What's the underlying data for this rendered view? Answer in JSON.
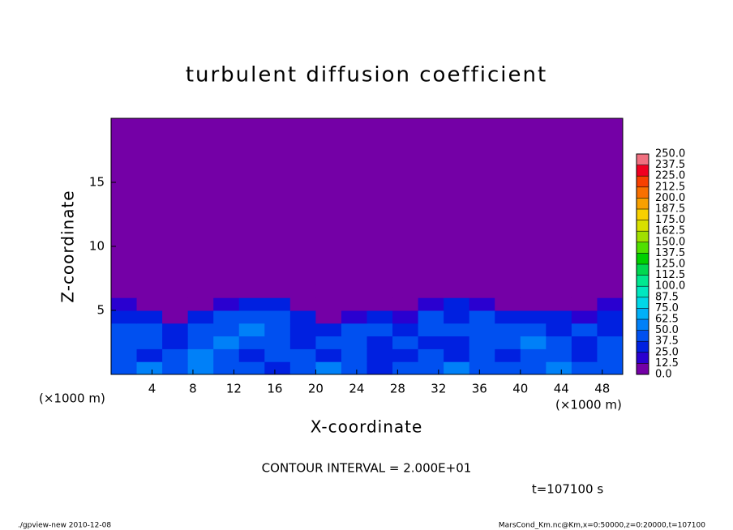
{
  "chart_data": {
    "type": "heatmap",
    "title": "turbulent diffusion coefficient",
    "x_label": "X-coordinate",
    "y_label": "Z-coordinate",
    "x_unit": "(×1000 m)",
    "y_unit": "(×1000 m)",
    "annotation": "CONTOUR INTERVAL = 2.000E+01",
    "time_label": "t=107100 s",
    "footer_left": "./gpview-new  2010-12-08",
    "footer_right": "MarsCond_Km.nc@Km,x=0:50000,z=0:20000,t=107100",
    "xlim": [
      0,
      50
    ],
    "ylim": [
      0,
      20
    ],
    "xticks": [
      4,
      8,
      12,
      16,
      20,
      24,
      28,
      32,
      36,
      40,
      44,
      48
    ],
    "yticks": [
      5,
      10,
      15
    ],
    "x_edges": [
      0,
      2.5,
      5,
      7.5,
      10,
      12.5,
      15,
      17.5,
      20,
      22.5,
      25,
      27.5,
      30,
      32.5,
      35,
      37.5,
      40,
      42.5,
      45,
      47.5,
      50
    ],
    "y_edges": [
      0,
      1,
      2,
      3,
      4,
      5,
      6,
      7,
      20
    ],
    "values": [
      [
        45,
        50,
        40,
        55,
        45,
        40,
        35,
        45,
        50,
        40,
        35,
        40,
        45,
        50,
        45,
        40,
        45,
        50,
        40,
        45
      ],
      [
        40,
        35,
        45,
        50,
        40,
        35,
        40,
        45,
        35,
        40,
        30,
        35,
        40,
        35,
        45,
        35,
        40,
        45,
        35,
        40
      ],
      [
        45,
        40,
        35,
        45,
        50,
        40,
        45,
        35,
        40,
        45,
        35,
        40,
        35,
        30,
        45,
        40,
        50,
        40,
        35,
        40
      ],
      [
        40,
        45,
        30,
        40,
        45,
        50,
        40,
        35,
        30,
        40,
        45,
        35,
        45,
        40,
        45,
        40,
        45,
        35,
        40,
        35
      ],
      [
        35,
        25,
        10,
        30,
        40,
        45,
        40,
        30,
        10,
        15,
        30,
        20,
        40,
        35,
        40,
        30,
        35,
        25,
        15,
        30
      ],
      [
        20,
        5,
        0,
        5,
        20,
        30,
        25,
        10,
        0,
        0,
        5,
        0,
        20,
        25,
        20,
        10,
        10,
        5,
        0,
        15
      ],
      [
        0,
        0,
        0,
        0,
        0,
        5,
        0,
        0,
        0,
        0,
        0,
        0,
        0,
        0,
        0,
        0,
        0,
        0,
        0,
        0
      ],
      [
        0,
        0,
        0,
        0,
        0,
        0,
        0,
        0,
        0,
        0,
        0,
        0,
        0,
        0,
        0,
        0,
        0,
        0,
        0,
        0
      ]
    ],
    "levels": [
      {
        "value": 0,
        "label": "0.0"
      },
      {
        "value": 12.5,
        "label": "12.5"
      },
      {
        "value": 25,
        "label": "25.0"
      },
      {
        "value": 37.5,
        "label": "37.5"
      },
      {
        "value": 50,
        "label": "50.0"
      },
      {
        "value": 62.5,
        "label": "62.5"
      },
      {
        "value": 75,
        "label": "75.0"
      },
      {
        "value": 87.5,
        "label": "87.5"
      },
      {
        "value": 100,
        "label": "100.0"
      },
      {
        "value": 112.5,
        "label": "112.5"
      },
      {
        "value": 125,
        "label": "125.0"
      },
      {
        "value": 137.5,
        "label": "137.5"
      },
      {
        "value": 150,
        "label": "150.0"
      },
      {
        "value": 162.5,
        "label": "162.5"
      },
      {
        "value": 175,
        "label": "175.0"
      },
      {
        "value": 187.5,
        "label": "187.5"
      },
      {
        "value": 200,
        "label": "200.0"
      },
      {
        "value": 212.5,
        "label": "212.5"
      },
      {
        "value": 225,
        "label": "225.0"
      },
      {
        "value": 237.5,
        "label": "237.5"
      },
      {
        "value": 250,
        "label": "250.0"
      }
    ],
    "colors": [
      "#7400a6",
      "#2a00d0",
      "#0020e0",
      "#0050f0",
      "#0080f8",
      "#00b0f8",
      "#00d8e8",
      "#00e8c0",
      "#00e890",
      "#00d850",
      "#00d000",
      "#50e000",
      "#a0e000",
      "#d8e000",
      "#f8d000",
      "#f8a000",
      "#f87000",
      "#f84000",
      "#f00020",
      "#f07080"
    ]
  }
}
